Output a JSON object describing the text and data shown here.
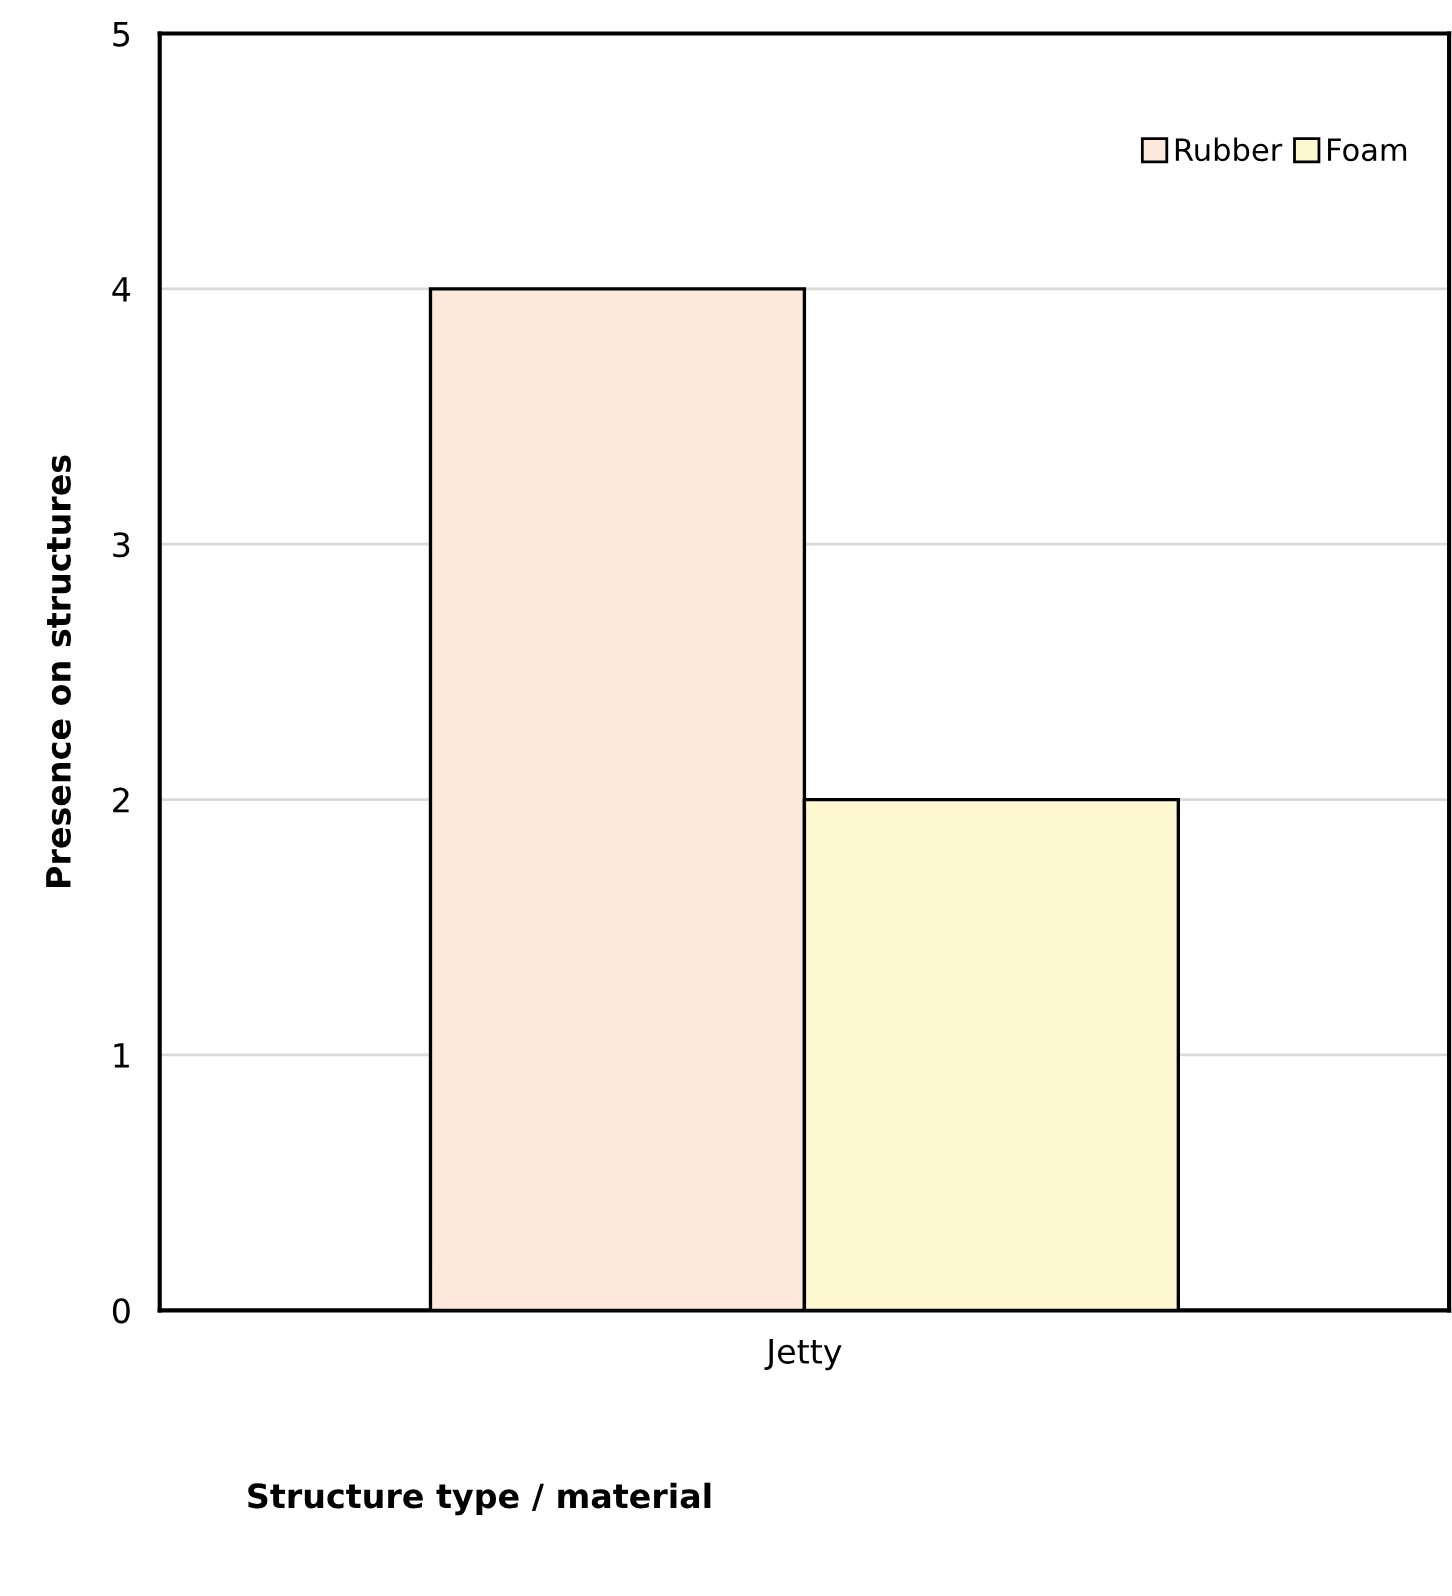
{
  "chart_data": {
    "type": "bar",
    "xlabel": "Structure type / material",
    "ylabel": "Presence on structures",
    "categories": [
      "Jetty"
    ],
    "series": [
      {
        "name": "Rubber",
        "color": "#fde9dc",
        "values": [
          4
        ]
      },
      {
        "name": "Foam",
        "color": "#fdf8cf",
        "values": [
          2
        ]
      }
    ],
    "ylim": [
      0,
      5
    ],
    "yticks": [
      0,
      1,
      2,
      3,
      4,
      5
    ],
    "grid": "y",
    "legend": "top right"
  }
}
